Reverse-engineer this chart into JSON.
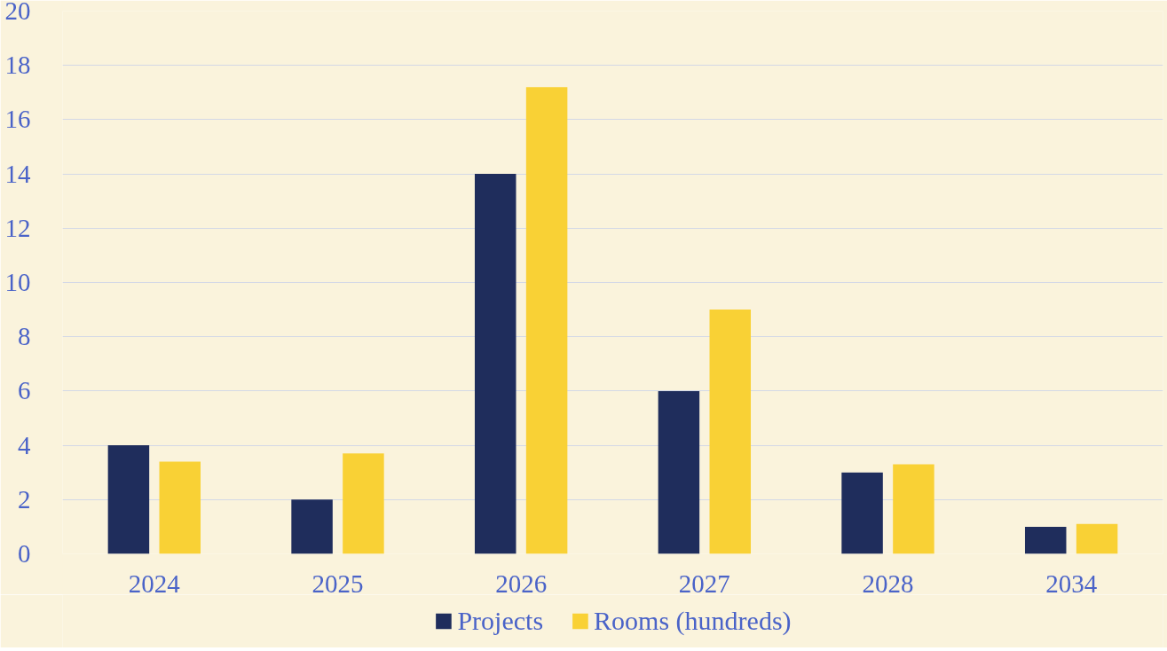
{
  "chart_data": {
    "type": "bar",
    "categories": [
      "2024",
      "2025",
      "2026",
      "2027",
      "2028",
      "2034"
    ],
    "series": [
      {
        "name": "Projects",
        "color": "#1f2d5c",
        "values": [
          4,
          2,
          14,
          6,
          3,
          1
        ]
      },
      {
        "name": "Rooms (hundreds)",
        "color": "#f9d135",
        "values": [
          3.4,
          3.7,
          17.2,
          9.0,
          3.3,
          1.1
        ]
      }
    ],
    "ylim": [
      0,
      20
    ],
    "yticks": [
      0,
      2,
      4,
      6,
      8,
      10,
      12,
      14,
      16,
      18,
      20
    ],
    "grid": "y",
    "legend": "bottom"
  }
}
